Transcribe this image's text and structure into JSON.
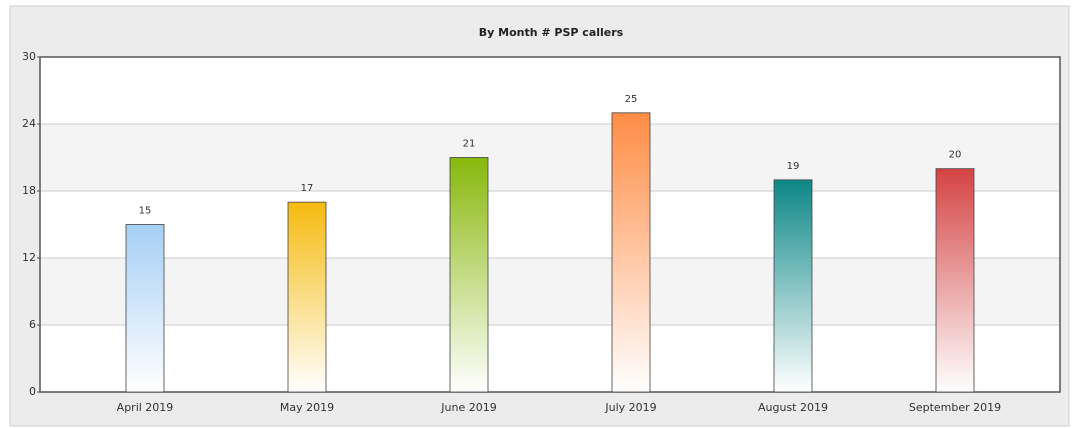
{
  "chart_data": {
    "type": "bar",
    "title": "By Month # PSP callers",
    "categories": [
      "April 2019",
      "May 2019",
      "June 2019",
      "July 2019",
      "August 2019",
      "September 2019"
    ],
    "values": [
      15,
      17,
      21,
      25,
      19,
      20
    ],
    "colors": [
      "#a6cff5",
      "#f5bb0f",
      "#88b80c",
      "#ff8c45",
      "#0d8787",
      "#d44343"
    ],
    "ylim": [
      0,
      30
    ],
    "yticks": [
      0,
      6,
      12,
      18,
      24,
      30
    ],
    "grid": true
  }
}
